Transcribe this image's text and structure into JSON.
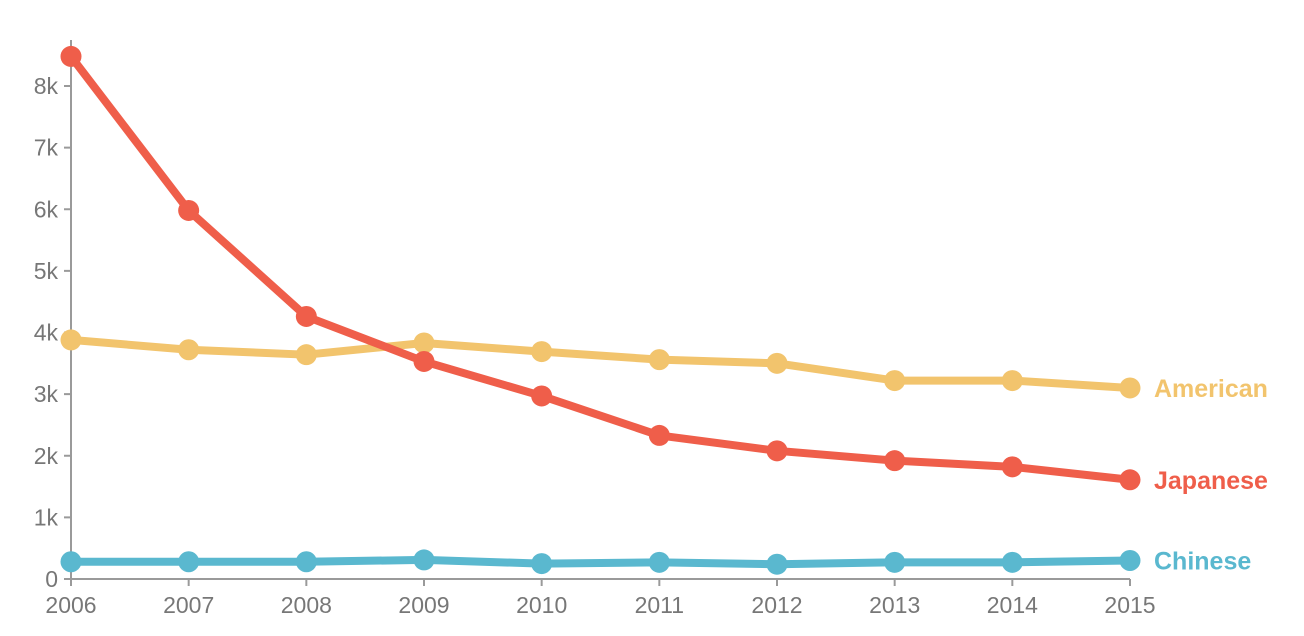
{
  "chart_data": {
    "type": "line",
    "x": [
      2006,
      2007,
      2008,
      2009,
      2010,
      2011,
      2012,
      2013,
      2014,
      2015
    ],
    "x_tick_labels": [
      "2006",
      "2007",
      "2008",
      "2009",
      "2010",
      "2011",
      "2012",
      "2013",
      "2014",
      "2015"
    ],
    "y_ticks": [
      0,
      1000,
      2000,
      3000,
      4000,
      5000,
      6000,
      7000,
      8000
    ],
    "y_tick_labels": [
      "0",
      "1k",
      "2k",
      "3k",
      "4k",
      "5k",
      "6k",
      "7k",
      "8k"
    ],
    "ylim": [
      0,
      8500
    ],
    "xlim": [
      2006,
      2015
    ],
    "grid": false,
    "title": "",
    "xlabel": "",
    "ylabel": "",
    "series": [
      {
        "name": "American",
        "color": "#f2c46d",
        "values": [
          3880,
          3720,
          3640,
          3830,
          3690,
          3560,
          3500,
          3220,
          3220,
          3100
        ]
      },
      {
        "name": "Japanese",
        "color": "#ef5e4a",
        "values": [
          8480,
          5980,
          4260,
          3530,
          2970,
          2330,
          2080,
          1920,
          1820,
          1610
        ]
      },
      {
        "name": "Chinese",
        "color": "#5ab8cf",
        "values": [
          280,
          280,
          280,
          310,
          250,
          270,
          240,
          270,
          270,
          300
        ]
      }
    ]
  }
}
